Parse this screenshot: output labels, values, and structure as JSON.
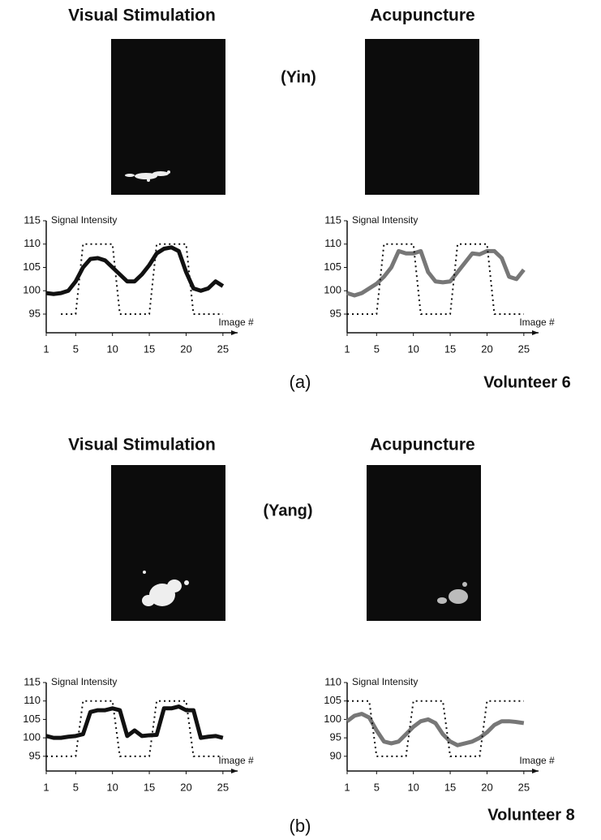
{
  "panels": [
    {
      "left_title": "Visual  Stimulation",
      "right_title": "Acupuncture",
      "condition": "(Yin)",
      "label": "(a)",
      "volunteer": "Volunteer 6"
    },
    {
      "left_title": "Visual  Stimulation",
      "right_title": "Acupuncture",
      "condition": "(Yang)",
      "label": "(b)",
      "volunteer": "Volunteer 8"
    }
  ],
  "chart_data": [
    {
      "type": "line",
      "y_label": "Signal Intensity",
      "x_label": "Image #",
      "x": [
        1,
        2,
        3,
        4,
        5,
        6,
        7,
        8,
        9,
        10,
        11,
        12,
        13,
        14,
        15,
        16,
        17,
        18,
        19,
        20,
        21,
        22,
        23,
        24,
        25
      ],
      "series": [
        {
          "color": "#111111",
          "style": "solid",
          "values": [
            99.5,
            99.3,
            99.5,
            100,
            102,
            105,
            106.8,
            107,
            106.5,
            105,
            103.5,
            102,
            102,
            103.5,
            105.5,
            108,
            109,
            109.3,
            108.5,
            104,
            100.5,
            100,
            100.5,
            102,
            101
          ]
        },
        {
          "color": "#111111",
          "style": "dotted",
          "values": [
            null,
            null,
            95,
            95,
            95,
            110,
            110,
            110,
            110,
            110,
            95,
            95,
            95,
            95,
            95,
            110,
            110,
            110,
            110,
            110,
            95,
            95,
            95,
            95,
            95
          ]
        }
      ],
      "xlim": [
        1,
        27
      ],
      "ylim": [
        91,
        115
      ],
      "xticks": [
        1,
        5,
        10,
        15,
        20,
        25
      ],
      "yticks": [
        95,
        100,
        105,
        110,
        115
      ]
    },
    {
      "type": "line",
      "y_label": "Signal Intensity",
      "x_label": "Image #",
      "x": [
        1,
        2,
        3,
        4,
        5,
        6,
        7,
        8,
        9,
        10,
        11,
        12,
        13,
        14,
        15,
        16,
        17,
        18,
        19,
        20,
        21,
        22,
        23,
        24,
        25
      ],
      "series": [
        {
          "color": "#777777",
          "style": "solid",
          "values": [
            99.5,
            99,
            99.5,
            100.5,
            101.5,
            103,
            105,
            108.5,
            108,
            108,
            108.5,
            104,
            102,
            101.8,
            102,
            104,
            106,
            108,
            107.8,
            108.5,
            108.5,
            107,
            103,
            102.5,
            104.5
          ]
        },
        {
          "color": "#111111",
          "style": "dotted",
          "values": [
            95,
            95,
            95,
            95,
            95,
            110,
            110,
            110,
            110,
            110,
            95,
            95,
            95,
            95,
            95,
            110,
            110,
            110,
            110,
            110,
            95,
            95,
            95,
            95,
            95
          ]
        }
      ],
      "xlim": [
        1,
        27
      ],
      "ylim": [
        91,
        115
      ],
      "xticks": [
        1,
        5,
        10,
        15,
        20,
        25
      ],
      "yticks": [
        95,
        100,
        105,
        110,
        115
      ]
    },
    {
      "type": "line",
      "y_label": "Signal Intensity",
      "x_label": "Image #",
      "x": [
        1,
        2,
        3,
        4,
        5,
        6,
        7,
        8,
        9,
        10,
        11,
        12,
        13,
        14,
        15,
        16,
        17,
        18,
        19,
        20,
        21,
        22,
        23,
        24,
        25
      ],
      "series": [
        {
          "color": "#111111",
          "style": "solid",
          "values": [
            100.5,
            100,
            100,
            100.3,
            100.5,
            101,
            107,
            107.5,
            107.5,
            108,
            107.5,
            100.5,
            102,
            100.5,
            100.7,
            100.8,
            108,
            108,
            108.5,
            107.5,
            107.5,
            100,
            100.3,
            100.5,
            100
          ]
        },
        {
          "color": "#111111",
          "style": "dotted",
          "values": [
            95,
            95,
            95,
            95,
            95,
            110,
            110,
            110,
            110,
            110,
            95,
            95,
            95,
            95,
            95,
            110,
            110,
            110,
            110,
            110,
            95,
            95,
            95,
            95,
            95
          ]
        }
      ],
      "xlim": [
        1,
        27
      ],
      "ylim": [
        91,
        115
      ],
      "xticks": [
        1,
        5,
        10,
        15,
        20,
        25
      ],
      "yticks": [
        95,
        100,
        105,
        110,
        115
      ]
    },
    {
      "type": "line",
      "y_label": "Signal Intensity",
      "x_label": "Image #",
      "x": [
        1,
        2,
        3,
        4,
        5,
        6,
        7,
        8,
        9,
        10,
        11,
        12,
        13,
        14,
        15,
        16,
        17,
        18,
        19,
        20,
        21,
        22,
        23,
        24,
        25
      ],
      "series": [
        {
          "color": "#777777",
          "style": "solid",
          "values": [
            99.5,
            101,
            101.5,
            100.5,
            97,
            94,
            93.5,
            94,
            96,
            98,
            99.5,
            100,
            99,
            96,
            94,
            93,
            93.5,
            94,
            95,
            96.5,
            98.5,
            99.5,
            99.5,
            99.3,
            99
          ]
        },
        {
          "color": "#111111",
          "style": "dotted",
          "values": [
            105,
            105,
            105,
            105,
            90,
            90,
            90,
            90,
            90,
            105,
            105,
            105,
            105,
            105,
            90,
            90,
            90,
            90,
            90,
            105,
            105,
            105,
            105,
            105,
            105
          ]
        }
      ],
      "xlim": [
        1,
        27
      ],
      "ylim": [
        86,
        110
      ],
      "xticks": [
        1,
        5,
        10,
        15,
        20,
        25
      ],
      "yticks": [
        90,
        95,
        100,
        105,
        110
      ]
    }
  ]
}
